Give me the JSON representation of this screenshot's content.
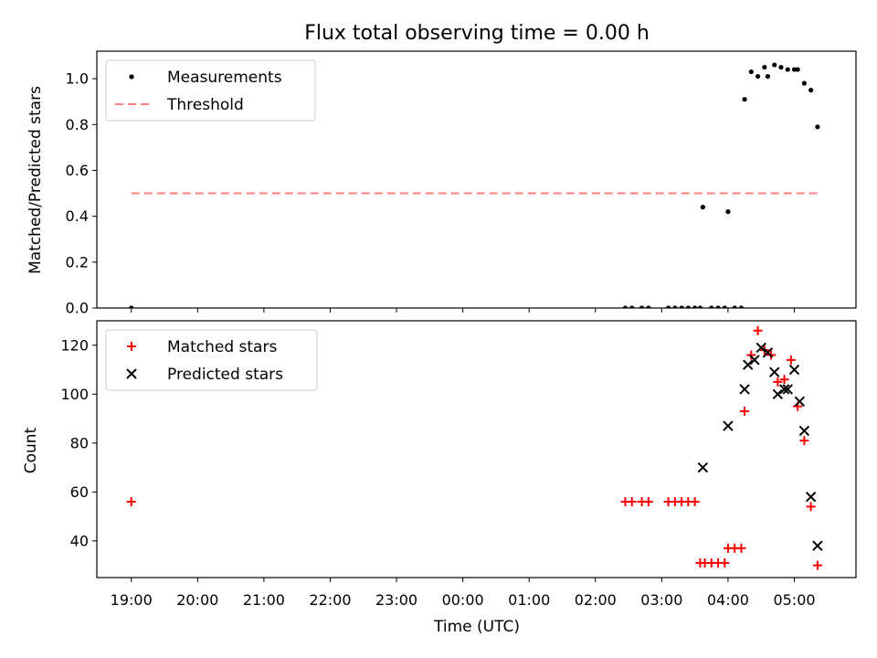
{
  "chart_data": {
    "title": "Flux total observing time = 0.00 h",
    "xlabel": "Time (UTC)",
    "x_tick_labels": [
      "19:00",
      "20:00",
      "21:00",
      "22:00",
      "23:00",
      "00:00",
      "01:00",
      "02:00",
      "03:00",
      "04:00",
      "05:00"
    ],
    "xlim_hours": [
      18.48,
      29.93
    ],
    "panels": [
      {
        "type": "scatter",
        "ylabel": "Matched/Predicted stars",
        "ylim": [
          0,
          1.12
        ],
        "y_ticks": [
          "0.0",
          "0.2",
          "0.4",
          "0.6",
          "0.8",
          "1.0"
        ],
        "legend_location": "top-left",
        "series": [
          {
            "name": "Measurements",
            "marker": "dot",
            "color": "#000000",
            "x": [
              19.0,
              26.45,
              26.55,
              26.7,
              26.8,
              27.1,
              27.2,
              27.3,
              27.4,
              27.5,
              27.58,
              27.62,
              27.75,
              27.85,
              27.95,
              28.0,
              28.1,
              28.2,
              28.25,
              28.35,
              28.45,
              28.55,
              28.6,
              28.7,
              28.8,
              28.9,
              29.0,
              29.05,
              29.15,
              29.25,
              29.35
            ],
            "y": [
              0.0,
              0.0,
              0.0,
              0.0,
              0.0,
              0.0,
              0.0,
              0.0,
              0.0,
              0.0,
              0.0,
              0.44,
              0.0,
              0.0,
              0.0,
              0.42,
              0.0,
              0.0,
              0.91,
              1.03,
              1.01,
              1.05,
              1.01,
              1.06,
              1.05,
              1.04,
              1.04,
              1.04,
              0.98,
              0.95,
              0.79
            ]
          },
          {
            "name": "Threshold",
            "style": "dashed",
            "color": "#ff8080",
            "x": [
              19.0,
              29.4
            ],
            "y": [
              0.5,
              0.5
            ]
          }
        ]
      },
      {
        "type": "scatter",
        "ylabel": "Count",
        "ylim": [
          25,
          130
        ],
        "y_ticks": [
          "40",
          "60",
          "80",
          "100",
          "120"
        ],
        "legend_location": "top-left",
        "series": [
          {
            "name": "Matched stars",
            "marker": "plus",
            "color": "#ff0000",
            "x": [
              19.0,
              26.45,
              26.55,
              26.7,
              26.8,
              27.1,
              27.2,
              27.3,
              27.4,
              27.5,
              27.58,
              27.65,
              27.75,
              27.85,
              27.95,
              28.0,
              28.1,
              28.2,
              28.25,
              28.35,
              28.45,
              28.55,
              28.65,
              28.75,
              28.85,
              28.95,
              29.05,
              29.15,
              29.25,
              29.35
            ],
            "y": [
              56,
              56,
              56,
              56,
              56,
              56,
              56,
              56,
              56,
              56,
              31,
              31,
              31,
              31,
              31,
              37,
              37,
              37,
              93,
              116,
              126,
              118,
              116,
              105,
              106,
              114,
              95,
              81,
              54,
              30
            ]
          },
          {
            "name": "Predicted stars",
            "marker": "x",
            "color": "#000000",
            "x": [
              27.62,
              28.0,
              28.25,
              28.3,
              28.4,
              28.5,
              28.6,
              28.7,
              28.75,
              28.85,
              28.9,
              29.0,
              29.08,
              29.15,
              29.25,
              29.35
            ],
            "y": [
              70,
              87,
              102,
              112,
              114,
              119,
              117,
              109,
              100,
              102,
              102,
              110,
              97,
              85,
              58,
              38
            ]
          }
        ]
      }
    ]
  }
}
